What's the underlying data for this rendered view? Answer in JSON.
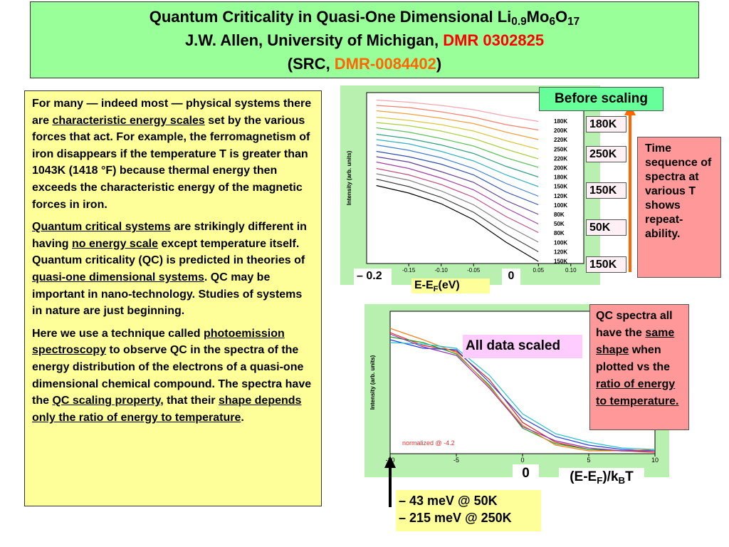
{
  "header": {
    "lines": [
      [
        {
          "text": "Quantum Criticality in Quasi-One Dimensional Li"
        },
        {
          "text": "0.9",
          "sub": true
        },
        {
          "text": "Mo"
        },
        {
          "text": "6",
          "sub": true
        },
        {
          "text": "O"
        },
        {
          "text": "17",
          "sub": true
        }
      ],
      [
        {
          "text": "J.W. Allen, University of Michigan, "
        },
        {
          "text": "DMR 0302825",
          "color": "#ff0000"
        }
      ],
      [
        {
          "text": "(SRC, "
        },
        {
          "text": "DMR-0084402",
          "color": "#ff6600"
        },
        {
          "text": ")"
        }
      ]
    ]
  },
  "body": {
    "paragraphs": [
      [
        {
          "text": "For many — indeed most — physical systems there are "
        },
        {
          "text": "characteristic energy scales",
          "underline": true
        },
        {
          "text": " set by the various forces that act. For example, the ferromagnetism of iron disappears if the temperature T is greater than 1043K (1418 °F) because thermal energy then exceeds the characteristic energy of the magnetic forces in iron."
        }
      ],
      [
        {
          "text": "Quantum critical systems",
          "underline": true
        },
        {
          "text": " are strikingly different  in having "
        },
        {
          "text": "no energy scale",
          "underline": true
        },
        {
          "text": " except temperature itself.  Quantum criticality (QC) is predicted in theories of "
        },
        {
          "text": "quasi-one dimensional systems",
          "underline": true
        },
        {
          "text": ".  QC may be important in nano-technology.  Studies of systems in nature are just beginning."
        }
      ],
      [
        {
          "text": "Here we use a technique called "
        },
        {
          "text": "photoemission spectroscopy",
          "underline": true
        },
        {
          "text": " to observe QC in the spectra of the energy distribution of the electrons of a quasi-one dimensional chemical compound.  The spectra have the "
        },
        {
          "text": "QC scaling property",
          "underline": true
        },
        {
          "text": ", that their "
        },
        {
          "text": "shape depends only the ratio of energy to temperature",
          "underline": true
        },
        {
          "text": "."
        }
      ]
    ]
  },
  "chart_data": [
    {
      "type": "line",
      "title": "Before scaling",
      "ylabel": "Intensity (arb. units)",
      "xlabel": [
        {
          "text": "E-E"
        },
        {
          "text": "F",
          "sub": true
        },
        {
          "text": "(eV)"
        }
      ],
      "annotations": [
        "– 0.2",
        "0"
      ],
      "temperature_markers": [
        "180K",
        "250K",
        "150K",
        "50K",
        "150K"
      ],
      "note": "Time sequence of spectra at various T shows repeat-ability.",
      "xlim": [
        -0.215,
        0.12
      ],
      "ylim": [
        0,
        16
      ],
      "xticks": [
        {
          "value": -0.15,
          "label": "-0.15"
        },
        {
          "value": -0.1,
          "label": "-0.10"
        },
        {
          "value": -0.05,
          "label": "-0.05"
        },
        0.05,
        {
          "value": 0.1,
          "label": "0.10"
        }
      ],
      "x": [
        -0.2,
        -0.15,
        -0.1,
        -0.05,
        0,
        0.05
      ],
      "series": [
        {
          "name": "180K",
          "color": "#f4a6b0",
          "values": [
            15.3,
            15.1,
            14.8,
            14.4,
            13.8,
            13.3
          ]
        },
        {
          "name": "200K",
          "color": "#f08070",
          "values": [
            14.8,
            14.6,
            14.2,
            13.7,
            13.0,
            12.5
          ]
        },
        {
          "name": "220K",
          "color": "#f0a040",
          "values": [
            14.3,
            14.0,
            13.6,
            13.1,
            12.3,
            11.6
          ]
        },
        {
          "name": "250K",
          "color": "#d8c840",
          "values": [
            13.7,
            13.4,
            13.0,
            12.4,
            11.5,
            10.7
          ]
        },
        {
          "name": "220K",
          "color": "#a8d040",
          "values": [
            13.2,
            12.9,
            12.4,
            11.7,
            10.7,
            9.8
          ]
        },
        {
          "name": "200K",
          "color": "#60c060",
          "values": [
            12.7,
            12.3,
            11.7,
            11.0,
            9.9,
            9.0
          ]
        },
        {
          "name": "180K",
          "color": "#30a080",
          "values": [
            12.1,
            11.7,
            11.1,
            10.3,
            9.1,
            8.1
          ]
        },
        {
          "name": "150K",
          "color": "#30b0c0",
          "values": [
            11.6,
            11.2,
            10.5,
            9.6,
            8.3,
            7.2
          ]
        },
        {
          "name": "120K",
          "color": "#4080d0",
          "values": [
            11.1,
            10.6,
            9.9,
            8.9,
            7.5,
            6.3
          ]
        },
        {
          "name": "100K",
          "color": "#3050b0",
          "values": [
            10.5,
            10.0,
            9.3,
            8.3,
            6.7,
            5.5
          ]
        },
        {
          "name": "80K",
          "color": "#604090",
          "values": [
            10.0,
            9.5,
            8.6,
            7.6,
            5.9,
            4.6
          ]
        },
        {
          "name": "50K",
          "color": "#a040a0",
          "values": [
            9.5,
            8.9,
            8.0,
            6.9,
            5.2,
            3.7
          ]
        },
        {
          "name": "80K",
          "color": "#c05080",
          "values": [
            8.9,
            8.3,
            7.4,
            6.2,
            4.4,
            2.9
          ]
        },
        {
          "name": "100K",
          "color": "#808080",
          "values": [
            8.4,
            7.8,
            6.8,
            5.5,
            3.6,
            2.0
          ]
        },
        {
          "name": "120K",
          "color": "#404040",
          "values": [
            7.9,
            7.2,
            6.2,
            4.8,
            2.8,
            1.1
          ]
        },
        {
          "name": "150K",
          "color": "#000000",
          "values": [
            7.3,
            6.6,
            5.6,
            4.1,
            2.0,
            0.2
          ]
        }
      ]
    },
    {
      "type": "line",
      "title": "All data scaled",
      "ylabel": "Intensity (arb. units)",
      "xlabel": [
        {
          "text": "(E-E"
        },
        {
          "text": "F",
          "sub": true
        },
        {
          "text": ")/k"
        },
        {
          "text": "B",
          "sub": true
        },
        {
          "text": "T"
        }
      ],
      "annotations": [
        "0"
      ],
      "inset_note": "normalized @ -4.2",
      "note": [
        {
          "text": "QC spectra all have the "
        },
        {
          "text": "same shape",
          "underline": true
        },
        {
          "text": " when plotted vs the "
        },
        {
          "text": "ratio of energy to temperature.",
          "underline": true
        }
      ],
      "scale_note": [
        "– 43 meV @ 50K",
        "– 215 meV @ 250K"
      ],
      "xlim": [
        -10,
        10
      ],
      "ylim": [
        0,
        1
      ],
      "xticks": [
        -10,
        -5,
        0,
        5,
        10
      ],
      "x": [
        -10,
        -7.5,
        -5,
        -2.5,
        0,
        2.5,
        5,
        7.5,
        10
      ],
      "series": [
        {
          "color": "#e02020",
          "values": [
            0.85,
            0.76,
            0.72,
            0.52,
            0.22,
            0.08,
            0.03,
            0.02,
            0.01
          ]
        },
        {
          "color": "#20a020",
          "values": [
            0.82,
            0.78,
            0.7,
            0.48,
            0.18,
            0.07,
            0.03,
            0.02,
            0.02
          ]
        },
        {
          "color": "#2040e0",
          "values": [
            0.8,
            0.74,
            0.73,
            0.5,
            0.25,
            0.12,
            0.06,
            0.03,
            0.02
          ]
        },
        {
          "color": "#f08020",
          "values": [
            0.88,
            0.8,
            0.71,
            0.47,
            0.2,
            0.06,
            0.02,
            0.02,
            0.03
          ]
        },
        {
          "color": "#20c0d0",
          "values": [
            0.78,
            0.77,
            0.74,
            0.55,
            0.28,
            0.14,
            0.08,
            0.04,
            0.03
          ]
        },
        {
          "color": "#9030b0",
          "values": [
            0.84,
            0.75,
            0.69,
            0.46,
            0.19,
            0.09,
            0.04,
            0.02,
            0.02
          ]
        }
      ]
    }
  ]
}
